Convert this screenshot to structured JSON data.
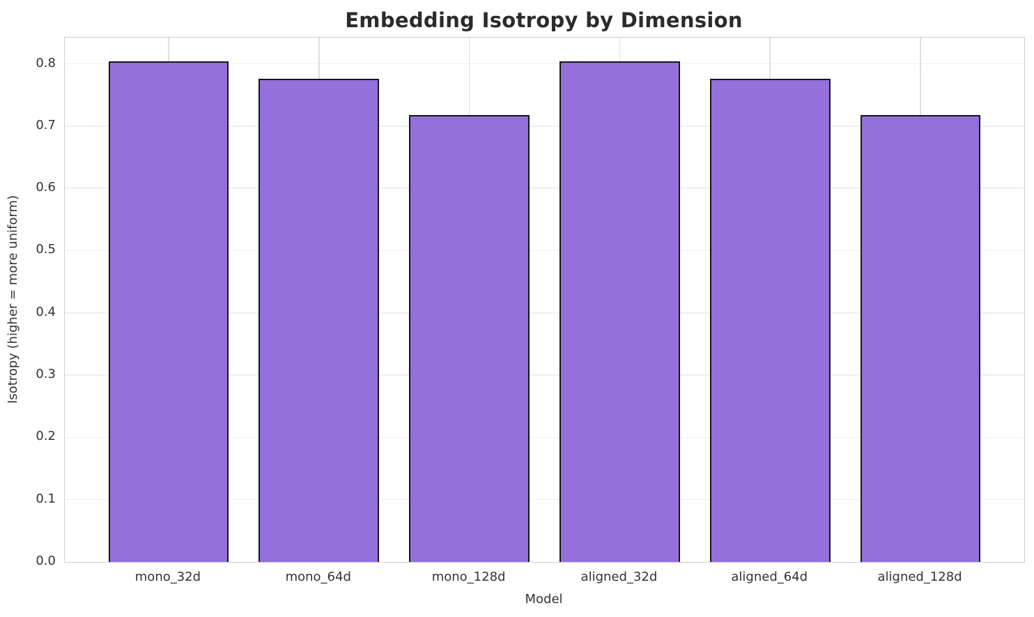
{
  "chart_data": {
    "type": "bar",
    "title": "Embedding Isotropy by Dimension",
    "xlabel": "Model",
    "ylabel": "Isotropy (higher = more uniform)",
    "categories": [
      "mono_32d",
      "mono_64d",
      "mono_128d",
      "aligned_32d",
      "aligned_64d",
      "aligned_128d"
    ],
    "values": [
      0.804,
      0.776,
      0.718,
      0.804,
      0.776,
      0.718
    ],
    "ylim": [
      0,
      0.842
    ],
    "yticks": [
      0.0,
      0.1,
      0.2,
      0.3,
      0.4,
      0.5,
      0.6,
      0.7,
      0.8
    ],
    "ytick_format_decimals": 1,
    "grid": true,
    "legend_position": "none",
    "bar_color": "#9370DB",
    "bar_edge_color": "#161616",
    "grid_color_h": "#efefef",
    "grid_color_v": "#dfdfdf",
    "spine_color": "#cdcdcd",
    "title_color": "#2b2b2b",
    "tick_color": "#333333"
  }
}
